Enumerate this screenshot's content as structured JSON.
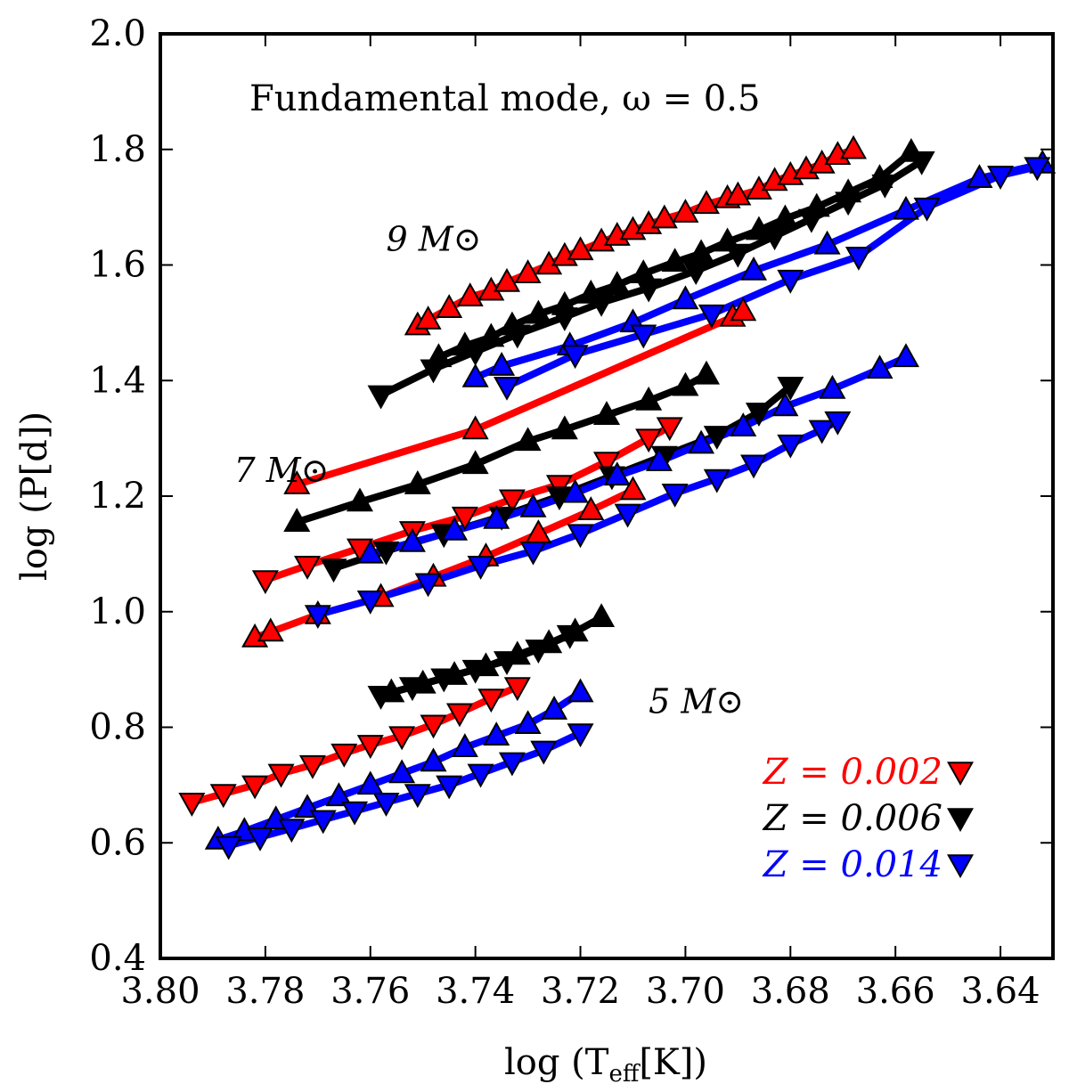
{
  "chart_data": {
    "type": "line",
    "title": "",
    "annotation": "Fundamental mode, ω = 0.5",
    "xlabel": "log (T_eff[K])",
    "ylabel": "log (P[d])",
    "xlim": [
      3.8,
      3.63
    ],
    "ylim": [
      0.4,
      2.0
    ],
    "x_reversed": true,
    "xticks": [
      3.8,
      3.78,
      3.76,
      3.74,
      3.72,
      3.7,
      3.68,
      3.66,
      3.64
    ],
    "xtick_labels": [
      "3.80",
      "3.78",
      "3.76",
      "3.74",
      "3.72",
      "3.70",
      "3.68",
      "3.66",
      "3.64"
    ],
    "yticks": [
      0.4,
      0.6,
      0.8,
      1.0,
      1.2,
      1.4,
      1.6,
      1.8,
      2.0
    ],
    "ytick_labels": [
      "0.4",
      "0.6",
      "0.8",
      "1.0",
      "1.2",
      "1.4",
      "1.6",
      "1.8",
      "2.0"
    ],
    "mass_labels": [
      {
        "label": "9 M⊙",
        "x": 3.757,
        "y": 1.625
      },
      {
        "label": "7 M⊙",
        "x": 3.786,
        "y": 1.225
      },
      {
        "label": "5 M⊙",
        "x": 3.707,
        "y": 0.825
      }
    ],
    "legend": {
      "placement": "bottom-right",
      "entries": [
        {
          "label": "Z = 0.002",
          "color": "#ff0000"
        },
        {
          "label": "Z = 0.006",
          "color": "#000000"
        },
        {
          "label": "Z = 0.014",
          "color": "#0000ff"
        }
      ]
    },
    "series": [
      {
        "name": "9M Z=0.002 blue loop",
        "mass": 9,
        "Z": "0.002",
        "color": "#ff0000",
        "marker": "up",
        "x": [
          3.751,
          3.749,
          3.745,
          3.741,
          3.737,
          3.734,
          3.73,
          3.726,
          3.723,
          3.72,
          3.716,
          3.713,
          3.71,
          3.707,
          3.704,
          3.7,
          3.696,
          3.692,
          3.69,
          3.686,
          3.683,
          3.68,
          3.677,
          3.674,
          3.671,
          3.668
        ],
        "y": [
          1.495,
          1.505,
          1.525,
          1.545,
          1.555,
          1.57,
          1.585,
          1.6,
          1.615,
          1.625,
          1.64,
          1.65,
          1.66,
          1.67,
          1.68,
          1.69,
          1.705,
          1.715,
          1.72,
          1.73,
          1.745,
          1.755,
          1.765,
          1.775,
          1.79,
          1.8
        ]
      },
      {
        "name": "9M Z=0.006 loop (ascending)",
        "mass": 9,
        "Z": "0.006",
        "color": "#000000",
        "marker": "up",
        "x": [
          3.747,
          3.742,
          3.737,
          3.733,
          3.728,
          3.723,
          3.718,
          3.713,
          3.708,
          3.702,
          3.697,
          3.692,
          3.686,
          3.681,
          3.675,
          3.669,
          3.663,
          3.657
        ],
        "y": [
          1.44,
          1.46,
          1.475,
          1.495,
          1.515,
          1.53,
          1.55,
          1.565,
          1.585,
          1.605,
          1.62,
          1.64,
          1.66,
          1.68,
          1.7,
          1.725,
          1.75,
          1.795
        ]
      },
      {
        "name": "9M Z=0.006 loop (descending)",
        "mass": 9,
        "Z": "0.006",
        "color": "#000000",
        "marker": "down",
        "x": [
          3.758,
          3.748,
          3.74,
          3.732,
          3.723,
          3.716,
          3.707,
          3.698,
          3.69,
          3.683,
          3.676,
          3.669,
          3.662,
          3.655
        ],
        "y": [
          1.375,
          1.42,
          1.45,
          1.48,
          1.51,
          1.535,
          1.56,
          1.59,
          1.62,
          1.65,
          1.68,
          1.71,
          1.74,
          1.78
        ]
      },
      {
        "name": "9M Z=0.014 loop (ascending)",
        "mass": 9,
        "Z": "0.014",
        "color": "#0000ff",
        "marker": "up",
        "x": [
          3.74,
          3.735,
          3.722,
          3.71,
          3.7,
          3.687,
          3.673,
          3.658,
          3.644,
          3.632
        ],
        "y": [
          1.405,
          1.425,
          1.46,
          1.5,
          1.54,
          1.59,
          1.635,
          1.695,
          1.75,
          1.775
        ]
      },
      {
        "name": "9M Z=0.014 loop (descending)",
        "mass": 9,
        "Z": "0.014",
        "color": "#0000ff",
        "marker": "down",
        "x": [
          3.734,
          3.721,
          3.708,
          3.695,
          3.68,
          3.667,
          3.654,
          3.64,
          3.633
        ],
        "y": [
          1.39,
          1.445,
          1.48,
          1.515,
          1.575,
          1.615,
          1.7,
          1.755,
          1.77
        ]
      },
      {
        "name": "7M Z=0.002 loop (ascending)",
        "mass": 7,
        "Z": "0.002",
        "color": "#ff0000",
        "marker": "up",
        "x": [
          3.774,
          3.74,
          3.691,
          3.689
        ],
        "y": [
          1.22,
          1.315,
          1.51,
          1.52
        ]
      },
      {
        "name": "7M Z=0.002 loop (descending)",
        "mass": 7,
        "Z": "0.002",
        "color": "#ff0000",
        "marker": "down",
        "x": [
          3.78,
          3.772,
          3.762,
          3.752,
          3.742,
          3.733,
          3.724,
          3.715,
          3.707,
          3.703
        ],
        "y": [
          1.055,
          1.08,
          1.11,
          1.14,
          1.165,
          1.195,
          1.22,
          1.26,
          1.3,
          1.32
        ]
      },
      {
        "name": "7M Z=0.002 second branch",
        "mass": 7,
        "Z": "0.002",
        "color": "#ff0000",
        "marker": "up",
        "x": [
          3.782,
          3.779,
          3.77,
          3.758,
          3.748,
          3.738,
          3.728,
          3.718,
          3.71
        ],
        "y": [
          0.955,
          0.965,
          0.995,
          1.025,
          1.06,
          1.095,
          1.135,
          1.175,
          1.21
        ]
      },
      {
        "name": "7M Z=0.006 loop (ascending)",
        "mass": 7,
        "Z": "0.006",
        "color": "#000000",
        "marker": "up",
        "x": [
          3.774,
          3.762,
          3.751,
          3.74,
          3.73,
          3.723,
          3.715,
          3.707,
          3.7,
          3.696
        ],
        "y": [
          1.155,
          1.19,
          1.22,
          1.255,
          1.295,
          1.315,
          1.34,
          1.365,
          1.39,
          1.41
        ]
      },
      {
        "name": "7M Z=0.006 loop (descending)",
        "mass": 7,
        "Z": "0.006",
        "color": "#000000",
        "marker": "down",
        "x": [
          3.767,
          3.757,
          3.746,
          3.735,
          3.724,
          3.714,
          3.704,
          3.694,
          3.686,
          3.68
        ],
        "y": [
          1.075,
          1.105,
          1.135,
          1.165,
          1.2,
          1.235,
          1.27,
          1.305,
          1.345,
          1.39
        ]
      },
      {
        "name": "7M Z=0.014 loop (ascending)",
        "mass": 7,
        "Z": "0.014",
        "color": "#0000ff",
        "marker": "up",
        "x": [
          3.76,
          3.752,
          3.744,
          3.736,
          3.729,
          3.721,
          3.713,
          3.705,
          3.697,
          3.689,
          3.681,
          3.672,
          3.663,
          3.658
        ],
        "y": [
          1.1,
          1.12,
          1.14,
          1.16,
          1.18,
          1.205,
          1.235,
          1.26,
          1.29,
          1.32,
          1.355,
          1.385,
          1.42,
          1.44
        ]
      },
      {
        "name": "7M Z=0.014 loop (descending)",
        "mass": 7,
        "Z": "0.014",
        "color": "#0000ff",
        "marker": "down",
        "x": [
          3.77,
          3.76,
          3.749,
          3.739,
          3.729,
          3.72,
          3.711,
          3.702,
          3.694,
          3.687,
          3.68,
          3.674,
          3.671
        ],
        "y": [
          0.995,
          1.02,
          1.05,
          1.08,
          1.105,
          1.135,
          1.17,
          1.205,
          1.23,
          1.255,
          1.29,
          1.315,
          1.33
        ]
      },
      {
        "name": "5M Z=0.002 loop",
        "mass": 5,
        "Z": "0.002",
        "color": "#ff0000",
        "marker": "down",
        "x": [
          3.794,
          3.788,
          3.782,
          3.777,
          3.771,
          3.765,
          3.76,
          3.754,
          3.748,
          3.743,
          3.737,
          3.732
        ],
        "y": [
          0.67,
          0.685,
          0.7,
          0.72,
          0.735,
          0.755,
          0.77,
          0.785,
          0.805,
          0.825,
          0.85,
          0.87
        ]
      },
      {
        "name": "5M Z=0.006 loop (ascending)",
        "mass": 5,
        "Z": "0.006",
        "color": "#000000",
        "marker": "up",
        "x": [
          3.756,
          3.75,
          3.744,
          3.738,
          3.732,
          3.726,
          3.721,
          3.716
        ],
        "y": [
          0.86,
          0.875,
          0.89,
          0.905,
          0.925,
          0.945,
          0.965,
          0.99
        ]
      },
      {
        "name": "5M Z=0.006 loop (descending)",
        "mass": 5,
        "Z": "0.006",
        "color": "#000000",
        "marker": "down",
        "x": [
          3.758,
          3.752,
          3.746,
          3.74,
          3.734,
          3.728,
          3.722
        ],
        "y": [
          0.855,
          0.87,
          0.885,
          0.9,
          0.915,
          0.935,
          0.96
        ]
      },
      {
        "name": "5M Z=0.014 loop (ascending)",
        "mass": 5,
        "Z": "0.014",
        "color": "#0000ff",
        "marker": "up",
        "x": [
          3.789,
          3.784,
          3.778,
          3.772,
          3.766,
          3.76,
          3.754,
          3.748,
          3.742,
          3.736,
          3.73,
          3.725,
          3.72
        ],
        "y": [
          0.605,
          0.62,
          0.64,
          0.66,
          0.68,
          0.7,
          0.72,
          0.74,
          0.765,
          0.785,
          0.805,
          0.83,
          0.86
        ]
      },
      {
        "name": "5M Z=0.014 loop (descending)",
        "mass": 5,
        "Z": "0.014",
        "color": "#0000ff",
        "marker": "down",
        "x": [
          3.787,
          3.781,
          3.775,
          3.769,
          3.763,
          3.757,
          3.751,
          3.745,
          3.739,
          3.733,
          3.727,
          3.72
        ],
        "y": [
          0.595,
          0.61,
          0.625,
          0.64,
          0.655,
          0.67,
          0.685,
          0.7,
          0.72,
          0.74,
          0.76,
          0.79
        ]
      }
    ]
  }
}
